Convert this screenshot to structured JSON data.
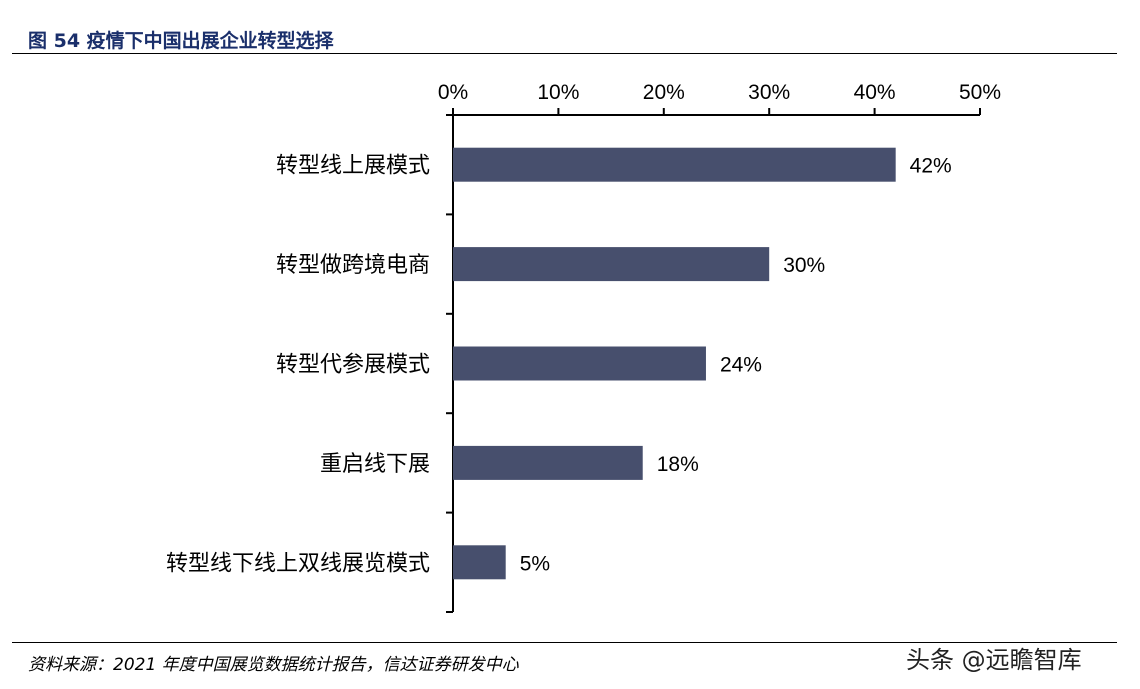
{
  "figure": {
    "title": "图 54  疫情下中国出展企业转型选择",
    "source": "资料来源：2021 年度中国展览数据统计报告，信达证券研发中心",
    "watermark": "头条 @远瞻智库"
  },
  "colors": {
    "bar": "#474f6d",
    "title": "#1a2f6b",
    "axis": "#000000"
  },
  "chart_data": {
    "type": "bar",
    "orientation": "horizontal",
    "categories": [
      "转型线上展模式",
      "转型做跨境电商",
      "转型代参展模式",
      "重启线下展",
      "转型线下线上双线展览模式"
    ],
    "values": [
      42,
      30,
      24,
      18,
      5
    ],
    "value_labels": [
      "42%",
      "30%",
      "24%",
      "18%",
      "5%"
    ],
    "xlim": [
      0,
      50
    ],
    "xticks": [
      0,
      10,
      20,
      30,
      40,
      50
    ],
    "xtick_labels": [
      "0%",
      "10%",
      "20%",
      "30%",
      "40%",
      "50%"
    ],
    "x_axis_position": "top",
    "grid": false,
    "legend": "none",
    "title": "",
    "xlabel": "",
    "ylabel": ""
  }
}
